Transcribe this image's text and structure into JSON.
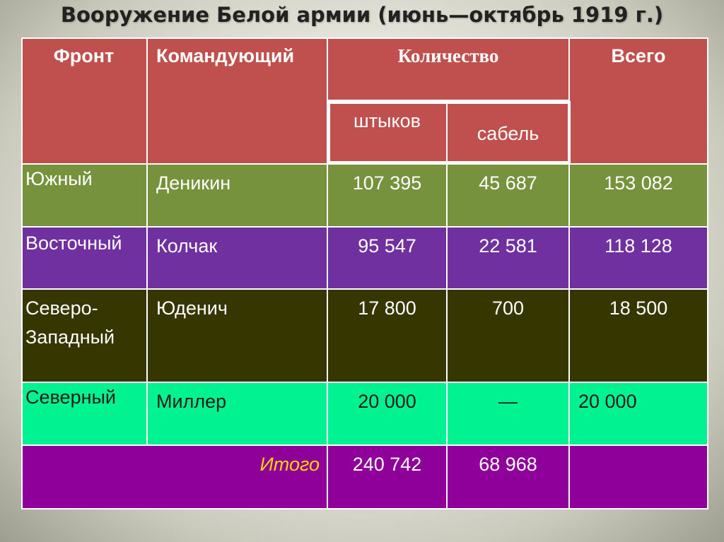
{
  "title": "Вооружение Белой армии (июнь—октябрь 1919 г.)",
  "table": {
    "headers": {
      "front": "Фронт",
      "commander": "Командующий",
      "quantity": "Количество",
      "bayonets": "штыков",
      "sabers": "сабель",
      "total": "Всего"
    },
    "rows": [
      {
        "front": "Южный",
        "commander": "Деникин",
        "bayonets": "107 395",
        "sabers": "45 687",
        "total": "153 082"
      },
      {
        "front": "Восточный",
        "commander": "Колчак",
        "bayonets": "95 547",
        "sabers": "22 581",
        "total": "118 128"
      },
      {
        "front": "Северо-Западный",
        "commander": "Юденич",
        "bayonets": "17 800",
        "sabers": "700",
        "total": "18 500"
      },
      {
        "front": "Северный",
        "commander": "Миллер",
        "bayonets": "20 000",
        "sabers": "—",
        "total": "20 000"
      }
    ],
    "summary": {
      "label": "Итого",
      "bayonets": "240 742",
      "sabers": "68 968",
      "total": ""
    }
  },
  "colors": {
    "header": "#c0504d",
    "row_south": "#76923c",
    "row_east": "#7030a0",
    "row_northwest": "#363600",
    "row_north": "#00f291",
    "row_total": "#8e0099",
    "total_label": "#ffd700"
  }
}
